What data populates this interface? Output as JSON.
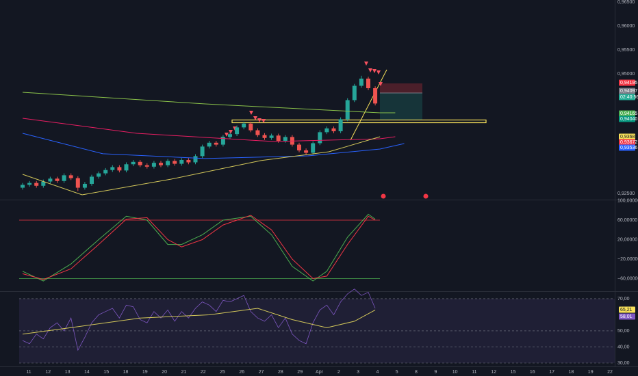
{
  "main_pane": {
    "ylim": [
      0.92371,
      0.96543
    ],
    "yticks": [
      {
        "value": 0.965,
        "label": "0,96500"
      },
      {
        "value": 0.96,
        "label": "0,96000"
      },
      {
        "value": 0.955,
        "label": "0,95500"
      },
      {
        "value": 0.95,
        "label": "0,95000"
      },
      {
        "value": 0.925,
        "label": "0,92500"
      }
    ],
    "candles": [
      [
        0.9262,
        0.9272,
        0.9258,
        0.9268
      ],
      [
        0.9268,
        0.9276,
        0.9264,
        0.9272
      ],
      [
        0.9272,
        0.9276,
        0.9262,
        0.9266
      ],
      [
        0.9266,
        0.9279,
        0.9262,
        0.9275
      ],
      [
        0.9275,
        0.9285,
        0.9271,
        0.9281
      ],
      [
        0.9281,
        0.9285,
        0.9272,
        0.9276
      ],
      [
        0.9276,
        0.9292,
        0.9272,
        0.9288
      ],
      [
        0.9288,
        0.9292,
        0.9278,
        0.9282
      ],
      [
        0.9282,
        0.9286,
        0.9255,
        0.9262
      ],
      [
        0.9262,
        0.9274,
        0.9258,
        0.927
      ],
      [
        0.927,
        0.9289,
        0.9266,
        0.9285
      ],
      [
        0.9285,
        0.9296,
        0.9281,
        0.9292
      ],
      [
        0.9292,
        0.9303,
        0.9288,
        0.9299
      ],
      [
        0.9299,
        0.9309,
        0.9295,
        0.9305
      ],
      [
        0.9305,
        0.9309,
        0.9294,
        0.9298
      ],
      [
        0.9298,
        0.9315,
        0.9294,
        0.9311
      ],
      [
        0.9311,
        0.932,
        0.9307,
        0.9316
      ],
      [
        0.9316,
        0.932,
        0.9305,
        0.9309
      ],
      [
        0.9309,
        0.9313,
        0.9302,
        0.9306
      ],
      [
        0.9306,
        0.9318,
        0.9302,
        0.9314
      ],
      [
        0.9314,
        0.9318,
        0.9305,
        0.9309
      ],
      [
        0.9309,
        0.9322,
        0.9305,
        0.9318
      ],
      [
        0.9318,
        0.9322,
        0.9308,
        0.9312
      ],
      [
        0.9312,
        0.9324,
        0.9308,
        0.932
      ],
      [
        0.932,
        0.9324,
        0.9311,
        0.9315
      ],
      [
        0.9315,
        0.9332,
        0.9311,
        0.9328
      ],
      [
        0.9328,
        0.9352,
        0.9324,
        0.9348
      ],
      [
        0.9348,
        0.936,
        0.9344,
        0.9356
      ],
      [
        0.9356,
        0.936,
        0.9348,
        0.9352
      ],
      [
        0.9352,
        0.9372,
        0.9348,
        0.9368
      ],
      [
        0.9368,
        0.9378,
        0.9364,
        0.9374
      ],
      [
        0.9374,
        0.9392,
        0.937,
        0.9388
      ],
      [
        0.9388,
        0.94,
        0.9384,
        0.9396
      ],
      [
        0.9396,
        0.94,
        0.9378,
        0.9382
      ],
      [
        0.9382,
        0.9386,
        0.9368,
        0.9372
      ],
      [
        0.9372,
        0.9376,
        0.9362,
        0.9366
      ],
      [
        0.9366,
        0.9375,
        0.9362,
        0.9371
      ],
      [
        0.9371,
        0.9375,
        0.9356,
        0.936
      ],
      [
        0.936,
        0.9372,
        0.9356,
        0.9368
      ],
      [
        0.9368,
        0.9372,
        0.9348,
        0.9352
      ],
      [
        0.9352,
        0.9356,
        0.9336,
        0.934
      ],
      [
        0.934,
        0.9344,
        0.9331,
        0.9335
      ],
      [
        0.9335,
        0.9359,
        0.9331,
        0.9355
      ],
      [
        0.9355,
        0.9382,
        0.9351,
        0.9378
      ],
      [
        0.9378,
        0.939,
        0.9374,
        0.9386
      ],
      [
        0.9386,
        0.939,
        0.9376,
        0.938
      ],
      [
        0.938,
        0.9409,
        0.9376,
        0.9405
      ],
      [
        0.9405,
        0.9449,
        0.9401,
        0.9445
      ],
      [
        0.9445,
        0.9479,
        0.9441,
        0.9475
      ],
      [
        0.9475,
        0.9496,
        0.9471,
        0.949
      ],
      [
        0.949,
        0.9494,
        0.9466,
        0.947
      ],
      [
        0.947,
        0.9474,
        0.9434,
        0.9438
      ]
    ],
    "up_color": "#26a69a",
    "down_color": "#ef5350",
    "averages": [
      {
        "color": "#8bc34a",
        "x": [
          0,
          26.4,
          51.7,
          53.9
        ],
        "values": [
          0.94614,
          0.94371,
          0.94186,
          0.94186
        ]
      },
      {
        "color": "#e91e63",
        "x": [
          0,
          16.5,
          36.3,
          51.7,
          53.9
        ],
        "values": [
          0.94071,
          0.93757,
          0.93586,
          0.93643,
          0.93686
        ]
      },
      {
        "color": "#2962ff",
        "x": [
          0,
          11.6,
          26.4,
          41.3,
          51.7,
          55.2
        ],
        "values": [
          0.93757,
          0.93329,
          0.93229,
          0.93286,
          0.93429,
          0.93543
        ]
      },
      {
        "color": "#d4c85a",
        "x": [
          0,
          8.6,
          21.5,
          34.4,
          44.3,
          51.7
        ],
        "values": [
          0.929,
          0.92471,
          0.928,
          0.93186,
          0.93371,
          0.93686
        ]
      }
    ],
    "price_tags": [
      {
        "label": "0,94195",
        "color": "#f23645"
      },
      {
        "label": "0,94097",
        "color": "#787b86"
      },
      {
        "label": "02:40:56",
        "color": "#22ab94"
      },
      {
        "label": "0,94165",
        "color": "#4caf50"
      },
      {
        "label": "0,94040",
        "color": "#089981"
      },
      {
        "label": "0,93681",
        "color": "#f7e05a"
      },
      {
        "label": "0,93672",
        "color": "#f23645"
      },
      {
        "label": "0,93536",
        "color": "#2962ff"
      }
    ]
  },
  "oscillator_pane": {
    "ylim": [
      -84.6,
      102.1
    ],
    "yticks": [
      {
        "value": 100,
        "label": "100,00000"
      },
      {
        "value": 60,
        "label": "60,00000"
      },
      {
        "value": 20,
        "label": "20,00000"
      },
      {
        "value": -20,
        "label": "−20,00000"
      },
      {
        "value": -60,
        "label": "−60,00000"
      }
    ],
    "levels": [
      {
        "value": 60,
        "color": "#f23645"
      },
      {
        "value": -60,
        "color": "#4caf50"
      }
    ],
    "lines": [
      {
        "color": "#4caf50",
        "x": [
          0,
          3,
          7,
          11,
          15,
          18,
          21,
          23,
          26,
          29,
          33,
          36,
          39,
          42,
          44,
          47,
          50,
          51
        ],
        "values": [
          -45,
          -65,
          -30,
          20,
          68,
          60,
          10,
          10,
          30,
          60,
          68,
          30,
          -35,
          -65,
          -45,
          25,
          72,
          62
        ]
      },
      {
        "color": "#f23645",
        "x": [
          0,
          3,
          7,
          11,
          15,
          18,
          21,
          23,
          26,
          29,
          33,
          36,
          39,
          42,
          44,
          47,
          50,
          51
        ],
        "values": [
          -50,
          -62,
          -40,
          10,
          62,
          65,
          20,
          5,
          20,
          50,
          70,
          40,
          -20,
          -60,
          -55,
          10,
          68,
          60
        ]
      }
    ]
  },
  "rsi_pane": {
    "ylim": [
      28.3,
      73.8
    ],
    "yticks": [
      {
        "value": 70,
        "label": "70,00"
      },
      {
        "value": 50,
        "label": "50,00"
      },
      {
        "value": 40,
        "label": "40,00"
      },
      {
        "value": 30,
        "label": "30,00"
      }
    ],
    "tags": [
      {
        "label": "65,21",
        "color": "#f7e05a"
      },
      {
        "label": "58,01",
        "color": "#7e57c2"
      }
    ],
    "rsi": {
      "color": "#7e57c2",
      "values": [
        44,
        42,
        48,
        45,
        52,
        55,
        50,
        58,
        38,
        46,
        55,
        60,
        62,
        64,
        58,
        66,
        65,
        57,
        55,
        62,
        58,
        63,
        56,
        62,
        58,
        64,
        68,
        66,
        62,
        69,
        68,
        70,
        72,
        62,
        58,
        56,
        60,
        52,
        58,
        48,
        44,
        42,
        55,
        63,
        66,
        60,
        68,
        73,
        76,
        72,
        74,
        64
      ]
    },
    "rsi_ma": {
      "color": "#d4c85a",
      "x": [
        0,
        7,
        17,
        27,
        34,
        39,
        44,
        48,
        51
      ],
      "values": [
        48,
        52,
        58,
        60,
        64,
        57,
        52,
        56,
        63
      ]
    }
  },
  "time_axis": [
    "11",
    "12",
    "13",
    "14",
    "15",
    "18",
    "19",
    "20",
    "21",
    "22",
    "25",
    "26",
    "27",
    "28",
    "29",
    "Apr",
    "2",
    "3",
    "4",
    "5",
    "8",
    "9",
    "10",
    "11",
    "12",
    "15",
    "16",
    "17",
    "18",
    "19",
    "22"
  ]
}
